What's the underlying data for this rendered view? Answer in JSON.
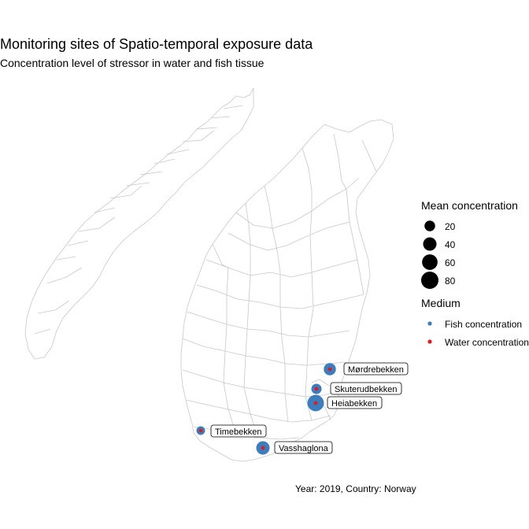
{
  "title": "Monitoring sites of Spatio-temporal exposure data",
  "subtitle": "Concentration level of stressor in water and fish tissue",
  "caption": "Year: 2019, Country: Norway",
  "colors": {
    "fish": "#3A7EC0",
    "water": "#E31A1C",
    "boundary": "#c8c8c8",
    "background": "#ffffff"
  },
  "legend": {
    "size_title": "Mean concentration",
    "size_items": [
      {
        "label": "20",
        "value": 20
      },
      {
        "label": "40",
        "value": 40
      },
      {
        "label": "60",
        "value": 60
      },
      {
        "label": "80",
        "value": 80
      }
    ],
    "color_title": "Medium",
    "color_items": [
      {
        "label": "Fish concentration",
        "key": "fish"
      },
      {
        "label": "Water concentration",
        "key": "water"
      }
    ]
  },
  "sites": [
    {
      "name": "Mørdrebekken",
      "fish_mean": 30,
      "water_mean": 5
    },
    {
      "name": "Skuterudbekken",
      "fish_mean": 18,
      "water_mean": 8
    },
    {
      "name": "Heiabekken",
      "fish_mean": 70,
      "water_mean": 8
    },
    {
      "name": "Timebekken",
      "fish_mean": 10,
      "water_mean": 5
    },
    {
      "name": "Vasshaglona",
      "fish_mean": 40,
      "water_mean": 5
    }
  ]
}
